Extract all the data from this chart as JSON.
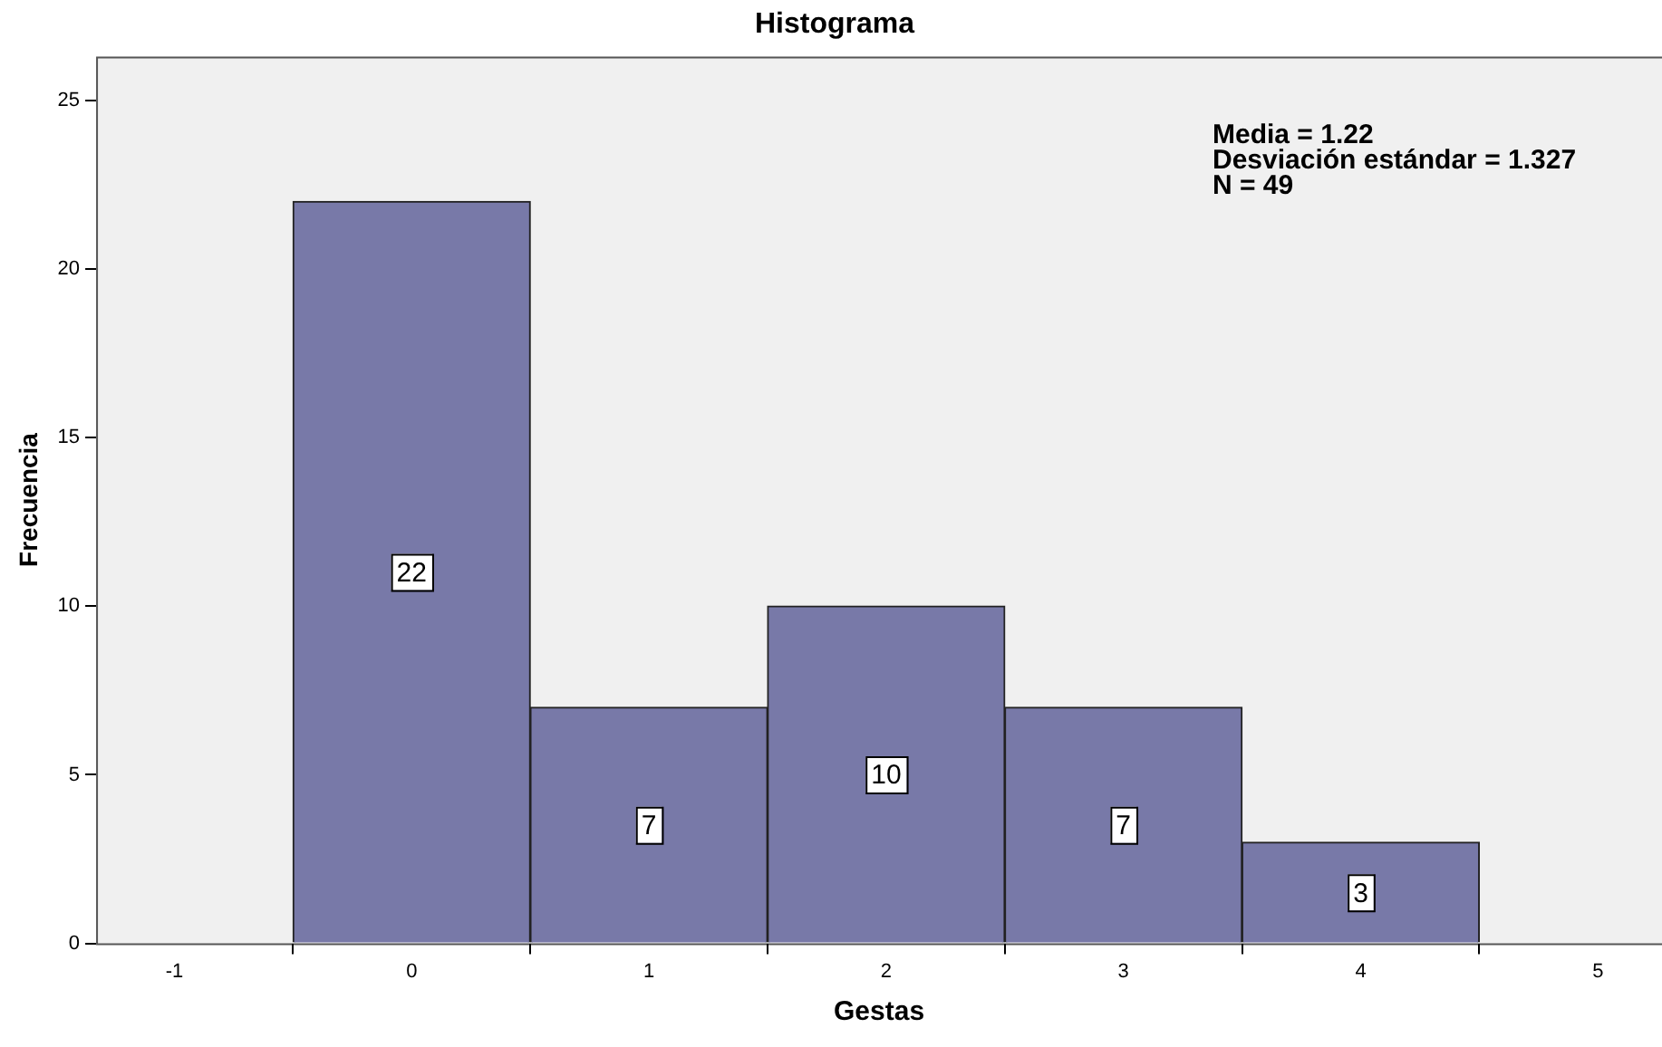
{
  "chart_data": {
    "type": "histogram",
    "title": "Histograma",
    "xlabel": "Gestas",
    "ylabel": "Frecuencia",
    "bins": [
      -0.5,
      0.5,
      1.5,
      2.5,
      3.5,
      4.5
    ],
    "values": [
      22,
      7,
      10,
      7,
      3
    ],
    "color": "#7879a8",
    "data_labels": true,
    "xlim": [
      -1.33,
      5.27
    ],
    "xticks": [
      -1,
      0,
      1,
      2,
      3,
      4,
      5
    ],
    "ylim": [
      0,
      26.3
    ],
    "yticks": [
      0,
      5,
      10,
      15,
      20,
      25
    ],
    "grid": false,
    "legend": false,
    "annotations": [
      "Media = 1.22",
      "Desviación estándar = 1.327",
      "N = 49"
    ]
  }
}
